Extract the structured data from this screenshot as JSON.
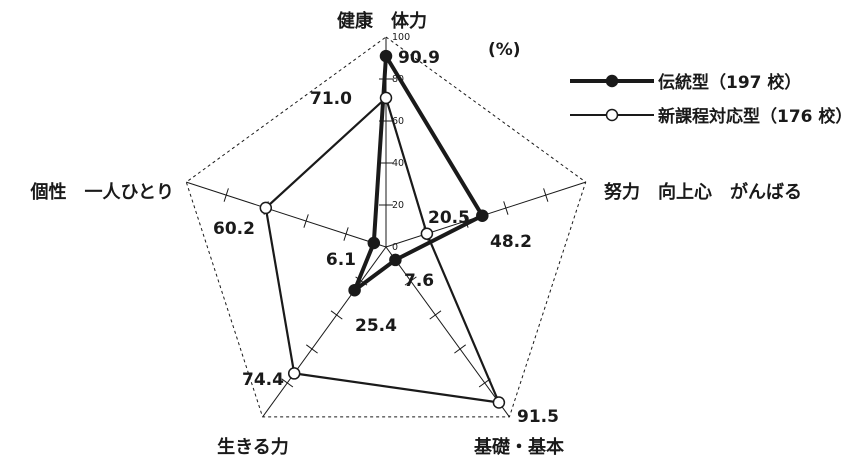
{
  "chart_data": {
    "type": "radar",
    "unit": "(%)",
    "axes": [
      {
        "label": "健康　体力"
      },
      {
        "label": "努力　向上心　がんばる"
      },
      {
        "label": "基礎・基本"
      },
      {
        "label": "生きる力"
      },
      {
        "label": "個性　一人ひとり"
      }
    ],
    "ticks": [
      "0",
      "20",
      "40",
      "60",
      "80",
      "100"
    ],
    "range": [
      0,
      100
    ],
    "series": [
      {
        "name": "伝統型（197 校）",
        "values": [
          90.9,
          48.2,
          7.6,
          25.4,
          6.1
        ],
        "labels": [
          "90.9",
          "48.2",
          "7.6",
          "25.4",
          "6.1"
        ],
        "marker": "filled"
      },
      {
        "name": "新課程対応型（176 校）",
        "values": [
          71.0,
          20.5,
          91.5,
          74.4,
          60.2
        ],
        "labels": [
          "71.0",
          "20.5",
          "91.5",
          "74.4",
          "60.2"
        ],
        "marker": "open"
      }
    ],
    "legend_position": "top-right",
    "grid": "dashed-pentagon"
  }
}
